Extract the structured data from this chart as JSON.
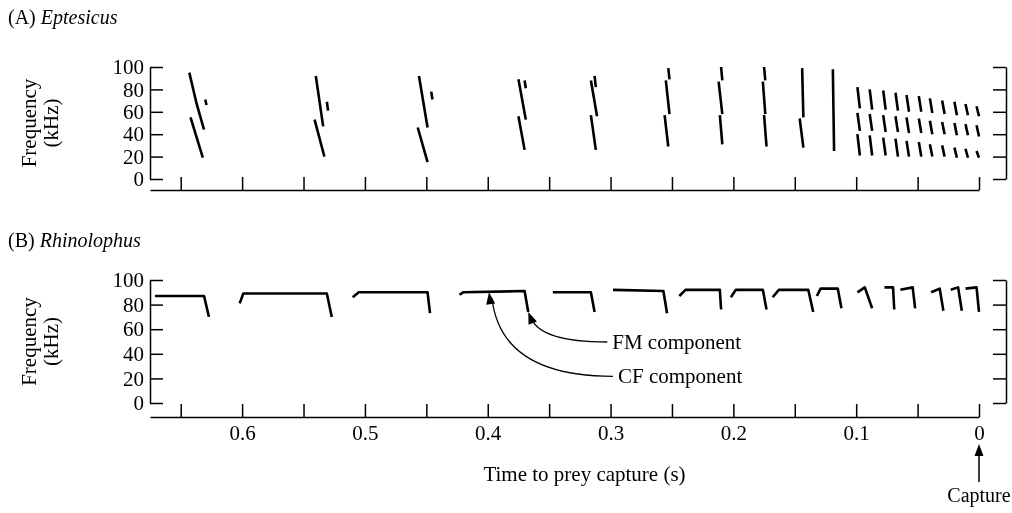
{
  "chart_data": [
    {
      "type": "line",
      "title": "(A) Eptesicus",
      "ylabel": "Frequency (kHz)",
      "xlim": [
        0.675,
        0
      ],
      "ylim": [
        0,
        100
      ],
      "yticks": [
        0,
        20,
        40,
        60,
        80,
        100
      ],
      "xticks": [
        0.65,
        0.6,
        0.55,
        0.5,
        0.45,
        0.4,
        0.35,
        0.3,
        0.25,
        0.2,
        0.15,
        0.1,
        0.05,
        0
      ],
      "tick_labels": "y",
      "marker": "none",
      "line_style": "solid",
      "series": [
        {
          "color": "#000000",
          "x": [
            0.643,
            0.637,
            0.631,
            null,
            0.54,
            0.534,
            null,
            0.456,
            0.449,
            null,
            0.375,
            0.369,
            null,
            0.316,
            0.311,
            null,
            0.255,
            0.252,
            null,
            0.212,
            0.209,
            null,
            0.176,
            0.174,
            null,
            0.144,
            0.143,
            null,
            0.119,
            0.118
          ],
          "values": [
            95,
            67,
            44,
            null,
            92,
            47,
            null,
            92,
            46,
            null,
            89,
            53,
            null,
            88,
            56,
            null,
            88,
            58,
            null,
            87,
            58,
            null,
            87,
            58,
            null,
            99,
            55,
            null,
            98,
            25
          ]
        },
        {
          "color": "#000000",
          "x": [
            0.642,
            0.632,
            null,
            0.541,
            0.533,
            null,
            0.457,
            0.449,
            null,
            0.375,
            0.37,
            null,
            0.316,
            0.312,
            null,
            0.256,
            0.253,
            null,
            0.211,
            0.209,
            null,
            0.175,
            0.173,
            null,
            0.146,
            0.143
          ],
          "values": [
            55,
            19,
            null,
            53,
            20,
            null,
            46,
            15,
            null,
            56,
            26,
            null,
            57,
            26,
            null,
            57,
            29,
            null,
            57,
            31,
            null,
            57,
            29,
            null,
            54,
            28
          ]
        },
        {
          "color": "#000000",
          "x": [
            0.63,
            0.629,
            null,
            0.531,
            0.53,
            null,
            0.446,
            0.445,
            null,
            0.37,
            0.369,
            null,
            0.313,
            0.312,
            null,
            0.253,
            0.252,
            null,
            0.21,
            0.209,
            null,
            0.175,
            0.174
          ],
          "values": [
            71,
            66,
            null,
            69,
            61,
            null,
            78,
            71,
            null,
            88,
            81,
            null,
            92,
            82,
            null,
            99,
            89,
            null,
            100,
            88,
            null,
            100,
            88
          ]
        },
        {
          "color": "#000000",
          "x": [
            0.099,
            0.097,
            null,
            0.089,
            0.087,
            null,
            0.078,
            0.076,
            null,
            0.068,
            0.066,
            null,
            0.059,
            0.057,
            null,
            0.049,
            0.047,
            null,
            0.04,
            0.038,
            null,
            0.03,
            0.028,
            null,
            0.02,
            0.018,
            null,
            0.011,
            0.009,
            null,
            0.002,
            0.0
          ],
          "values": [
            82,
            63,
            null,
            80,
            62,
            null,
            79,
            62,
            null,
            77,
            61,
            null,
            75,
            60,
            null,
            74,
            60,
            null,
            72,
            59,
            null,
            70,
            58,
            null,
            69,
            57,
            null,
            67,
            57,
            null,
            65,
            56
          ]
        },
        {
          "color": "#000000",
          "x": [
            0.099,
            0.097,
            null,
            0.089,
            0.087,
            null,
            0.078,
            0.076,
            null,
            0.068,
            0.066,
            null,
            0.059,
            0.057,
            null,
            0.049,
            0.047,
            null,
            0.04,
            0.038,
            null,
            0.03,
            0.028,
            null,
            0.02,
            0.018,
            null,
            0.011,
            0.009,
            null,
            0.002,
            0.0
          ],
          "values": [
            59,
            43,
            null,
            58,
            43,
            null,
            57,
            42,
            null,
            56,
            42,
            null,
            55,
            41,
            null,
            54,
            41,
            null,
            52,
            40,
            null,
            51,
            40,
            null,
            50,
            39,
            null,
            49,
            39,
            null,
            48,
            38
          ]
        },
        {
          "color": "#000000",
          "x": [
            0.099,
            0.097,
            null,
            0.089,
            0.087,
            null,
            0.078,
            0.076,
            null,
            0.068,
            0.066,
            null,
            0.059,
            0.057,
            null,
            0.049,
            0.047,
            null,
            0.04,
            0.038,
            null,
            0.03,
            0.028,
            null,
            0.02,
            0.018,
            null,
            0.011,
            0.009,
            null,
            0.002,
            0.0
          ],
          "values": [
            40,
            21,
            null,
            39,
            21,
            null,
            37,
            21,
            null,
            36,
            20,
            null,
            34,
            20,
            null,
            33,
            20,
            null,
            31,
            20,
            null,
            30,
            20,
            null,
            28,
            19,
            null,
            27,
            19,
            null,
            25,
            19
          ]
        }
      ]
    },
    {
      "type": "line",
      "title": "(B) Rhinolophus",
      "ylabel": "Frequency (kHz)",
      "xlabel": "Time to prey capture (s)",
      "xlim": [
        0.675,
        0
      ],
      "ylim": [
        0,
        100
      ],
      "yticks": [
        0,
        20,
        40,
        60,
        80,
        100
      ],
      "xticks": [
        {
          "value": 0.65,
          "label": null
        },
        0.6,
        {
          "value": 0.55,
          "label": null
        },
        0.5,
        {
          "value": 0.45,
          "label": null
        },
        0.4,
        {
          "value": 0.35,
          "label": null
        },
        0.3,
        {
          "value": 0.25,
          "label": null
        },
        0.2,
        {
          "value": 0.15,
          "label": null
        },
        0.1,
        {
          "value": 0.05,
          "label": null
        },
        0
      ],
      "marker": "none",
      "line_style": "solid",
      "series": [
        {
          "color": "#000000",
          "x": [
            0.671,
            0.631,
            0.627,
            null,
            0.602,
            0.599,
            0.531,
            0.527,
            null,
            0.51,
            0.505,
            0.449,
            0.447,
            null,
            0.423,
            0.42,
            0.37,
            0.367,
            null,
            0.347,
            0.316,
            0.313,
            null,
            0.298,
            0.257,
            0.254,
            null,
            0.244,
            0.239,
            0.211,
            0.21,
            null,
            0.202,
            0.198,
            0.176,
            0.173,
            null,
            0.168,
            0.163,
            0.139,
            0.135,
            null,
            0.132,
            0.129,
            0.115,
            0.112,
            null,
            0.099,
            0.093,
            0.087,
            null,
            0.077,
            0.07,
            0.069,
            null,
            0.064,
            0.054,
            0.052,
            null,
            0.039,
            0.032,
            0.029,
            null,
            0.023,
            0.017,
            0.014,
            null,
            0.011,
            0.002,
            0.0
          ],
          "values": [
            87,
            87,
            70,
            null,
            81,
            89,
            89,
            70,
            null,
            86,
            90,
            90,
            73,
            null,
            88,
            90,
            91,
            74,
            null,
            90,
            90,
            74,
            null,
            92,
            91,
            73,
            null,
            87,
            92,
            92,
            76,
            null,
            86,
            92,
            92,
            76,
            null,
            86,
            92,
            92,
            74,
            null,
            87,
            93,
            93,
            77,
            null,
            90,
            94,
            77,
            null,
            94,
            94,
            76,
            null,
            92,
            94,
            77,
            null,
            90,
            93,
            75,
            null,
            92,
            94,
            75,
            null,
            93,
            94,
            74
          ]
        }
      ],
      "annotations": [
        {
          "text": "FM component",
          "x": 0.367,
          "y": 74
        },
        {
          "text": "CF component",
          "x": 0.399,
          "y": 90
        },
        "Capture"
      ]
    }
  ]
}
